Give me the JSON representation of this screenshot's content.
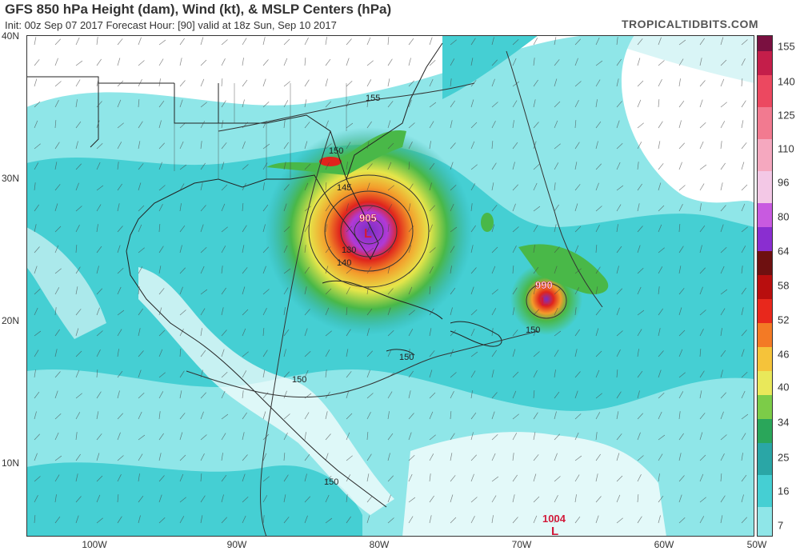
{
  "header": {
    "title": "GFS 850 hPa Height (dam), Wind (kt), & MSLP Centers (hPa)",
    "subtitle": "Init: 00z Sep 07 2017   Forecast Hour: [90]   valid at 18z Sun, Sep 10 2017",
    "brand": "TROPICALTIDBITS.COM"
  },
  "axes": {
    "lat_labels": [
      "40N",
      "30N",
      "20N",
      "10N"
    ],
    "lon_labels": [
      "100W",
      "90W",
      "80W",
      "70W",
      "60W",
      "50W"
    ]
  },
  "colorbar": {
    "labels": [
      "155",
      "140",
      "125",
      "110",
      "96",
      "80",
      "64",
      "58",
      "52",
      "46",
      "40",
      "34",
      "25",
      "16",
      "7"
    ]
  },
  "annotations": {
    "contours": [
      "155",
      "150",
      "145",
      "140",
      "130",
      "150",
      "150",
      "150",
      "150"
    ],
    "centers": [
      "905",
      "990",
      "1004"
    ]
  },
  "colors": {
    "cyan_light": "#8fe6e8",
    "cyan": "#45cfd3",
    "teal": "#2aa6a6",
    "green": "#49b848",
    "yellow": "#e6e64a",
    "orange": "#f39c2b",
    "red": "#e0241c",
    "magenta": "#b03ad6",
    "purple": "#7a2ec4"
  }
}
